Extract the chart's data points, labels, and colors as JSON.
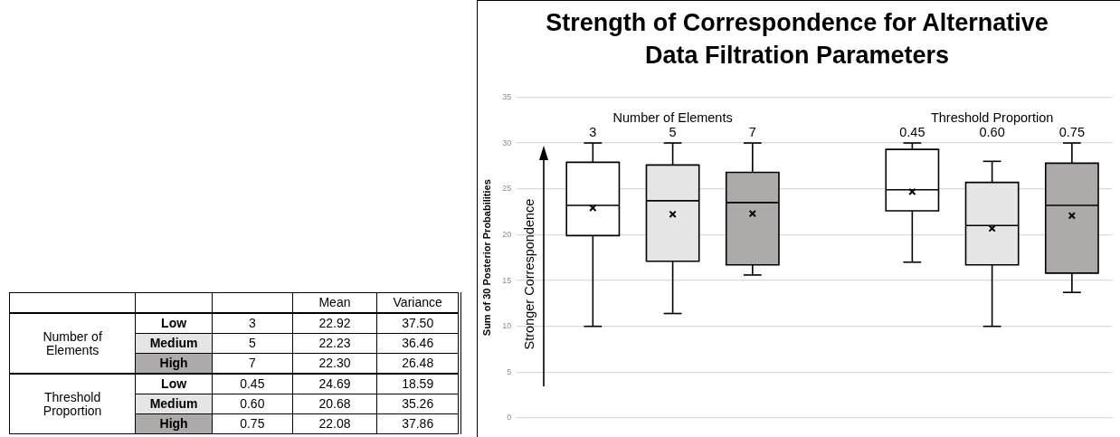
{
  "chart_data": [
    {
      "type": "other",
      "categories": [
        null,
        null,
        null,
        "Mean",
        "Variance"
      ],
      "cells": [
        [
          "Number of Elements",
          "Low",
          "3",
          "22.92",
          "37.50"
        ],
        [
          null,
          "Medium",
          "5",
          "22.23",
          "36.46"
        ],
        [
          null,
          "High",
          "7",
          "22.30",
          "26.48"
        ],
        [
          "Threshold Proportion",
          "Low",
          "0.45",
          "24.69",
          "18.59"
        ],
        [
          null,
          "Medium",
          "0.60",
          "20.68",
          "35.26"
        ],
        [
          null,
          "High",
          "0.75",
          "22.08",
          "37.86"
        ]
      ],
      "colors": [
        "#ffffff",
        "#e5e5e5",
        "#aeaaaa",
        "#ffffff",
        "#e5e5e5",
        "#aeaaaa"
      ]
    },
    {
      "type": "box",
      "title": "Strength of Correspondence for Alternative Data Filtration Parameters",
      "ylabel": "Sum of 30 Posterior Probabilities",
      "categories": [
        "3",
        "5",
        "7",
        null,
        "0.45",
        "0.60",
        "0.75"
      ],
      "boxes": [
        {
          "low": 10.0,
          "q1": 19.9,
          "median": 23.2,
          "q3": 27.9,
          "high": 30.0,
          "mean": 22.92
        },
        {
          "low": 11.4,
          "q1": 17.1,
          "median": 23.7,
          "q3": 27.6,
          "high": 30.0,
          "mean": 22.23
        },
        {
          "low": 15.6,
          "q1": 16.7,
          "median": 23.5,
          "q3": 26.8,
          "high": 30.0,
          "mean": 22.3
        },
        null,
        {
          "low": 17.0,
          "q1": 22.6,
          "median": 24.9,
          "q3": 29.3,
          "high": 30.0,
          "mean": 24.69
        },
        {
          "low": 10.0,
          "q1": 16.7,
          "median": 21.0,
          "q3": 25.7,
          "high": 28.0,
          "mean": 20.68
        },
        {
          "low": 13.7,
          "q1": 15.8,
          "median": 23.2,
          "q3": 27.8,
          "high": 30.0,
          "mean": 22.08
        }
      ],
      "colors": [
        "#ffffff",
        "#e5e5e5",
        "#aeaaaa",
        null,
        "#ffffff",
        "#e5e5e5",
        "#aeaaaa"
      ],
      "annotations": [
        "Number of Elements",
        "Threshold Proportion",
        "Stronger Correspondence"
      ],
      "ylim": [
        0,
        35
      ],
      "yticks": [
        0,
        5,
        10,
        15,
        20,
        25,
        30,
        35
      ],
      "grid": "y",
      "legend": false,
      "marker": "cross"
    }
  ]
}
